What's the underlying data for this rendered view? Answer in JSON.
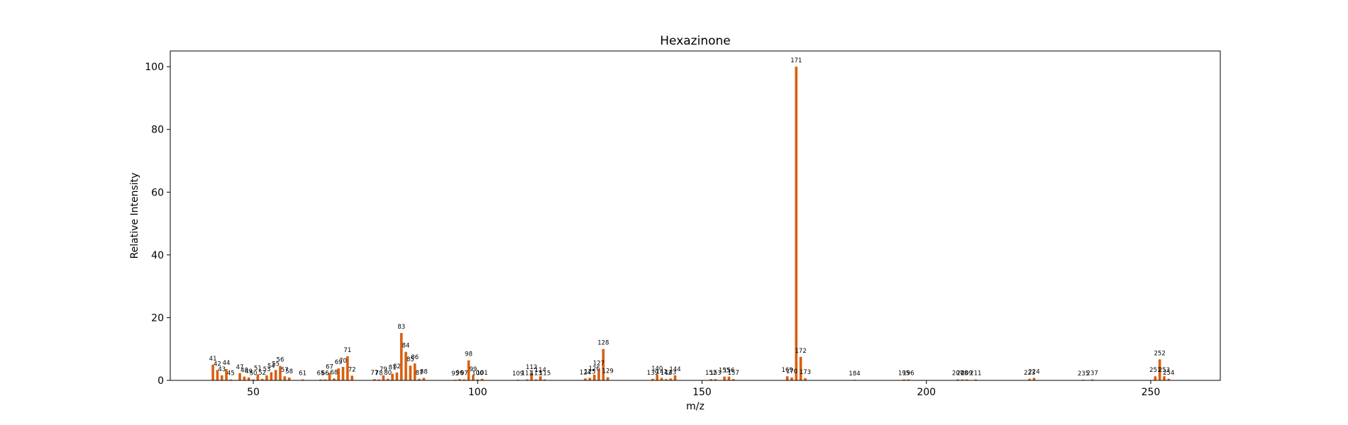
{
  "chart_data": {
    "type": "bar",
    "title": "Hexazinone",
    "xlabel": "m/z",
    "ylabel": "Relative Intensity",
    "xlim": [
      31.5,
      265.5
    ],
    "ylim": [
      0,
      105
    ],
    "xticks": [
      50,
      100,
      150,
      200,
      250
    ],
    "yticks": [
      0,
      20,
      40,
      60,
      80,
      100
    ],
    "grid": false,
    "bar_color": "#d95f0e",
    "series": [
      {
        "x": [
          41,
          42,
          43,
          44,
          45,
          47,
          48,
          49,
          50,
          51,
          52,
          53,
          54,
          55,
          56,
          57,
          58,
          61,
          65,
          66,
          67,
          68,
          69,
          70,
          71,
          72,
          77,
          78,
          79,
          80,
          81,
          82,
          83,
          84,
          85,
          86,
          87,
          88,
          95,
          96,
          97,
          98,
          99,
          100,
          101,
          109,
          111,
          112,
          113,
          114,
          115,
          124,
          125,
          126,
          127,
          128,
          129,
          139,
          140,
          141,
          142,
          143,
          144,
          152,
          153,
          155,
          156,
          157,
          169,
          170,
          171,
          172,
          173,
          184,
          195,
          196,
          207,
          208,
          209,
          211,
          223,
          224,
          235,
          237,
          251,
          252,
          253,
          254
        ],
        "values": [
          5.0,
          3.3,
          1.6,
          3.6,
          0.3,
          2.3,
          1.2,
          0.9,
          0.3,
          1.9,
          0.5,
          1.6,
          2.6,
          3.3,
          4.6,
          1.3,
          0.9,
          0.3,
          0.3,
          0.3,
          2.4,
          0.6,
          3.8,
          4.3,
          7.7,
          1.5,
          0.4,
          0.3,
          1.6,
          0.5,
          2.1,
          2.5,
          15.1,
          9.1,
          4.7,
          5.4,
          0.5,
          0.8,
          0.2,
          0.4,
          0.3,
          6.4,
          1.6,
          0.3,
          0.5,
          0.2,
          0.3,
          2.3,
          0.3,
          1.3,
          0.3,
          0.6,
          0.8,
          1.8,
          3.5,
          10.0,
          1.0,
          0.5,
          1.8,
          0.8,
          0.4,
          0.6,
          1.6,
          0.4,
          0.4,
          1.2,
          1.2,
          0.4,
          1.3,
          0.9,
          100.0,
          7.5,
          0.7,
          0.2,
          0.3,
          0.3,
          0.3,
          0.3,
          0.3,
          0.3,
          0.5,
          0.8,
          0.2,
          0.3,
          1.3,
          6.7,
          1.3,
          0.5
        ]
      }
    ]
  }
}
